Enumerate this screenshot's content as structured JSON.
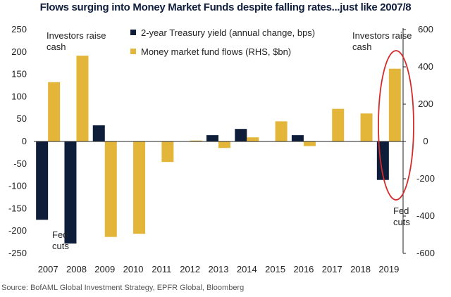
{
  "title": "Flows surging into Money Market Funds despite falling rates...just like 2007/8",
  "source": "Source:  BofAML Global Investment Strategy, EPFR Global, Bloomberg",
  "colors": {
    "treasury": "#0e1e3a",
    "mmf": "#e3b63a",
    "circle": "#d62a2a"
  },
  "chart_data": {
    "type": "bar",
    "categories": [
      "2007",
      "2008",
      "2009",
      "2010",
      "2011",
      "2012",
      "2013",
      "2014",
      "2015",
      "2016",
      "2017",
      "2018",
      "2019"
    ],
    "series": [
      {
        "name": "2-year Treasury yield (annual change, bps)",
        "axis": "left",
        "values": [
          -175,
          -228,
          36,
          0,
          0,
          0,
          14,
          28,
          0,
          14,
          0,
          0,
          -86
        ]
      },
      {
        "name": "Money market fund flows (RHS, $bn)",
        "axis": "right",
        "values": [
          318,
          460,
          -512,
          -495,
          -110,
          5,
          -35,
          22,
          108,
          -25,
          175,
          150,
          390
        ]
      }
    ],
    "ylim_left": [
      -250,
      250
    ],
    "yticks_left": [
      "250",
      "200",
      "150",
      "100",
      "50",
      "0",
      "-50",
      "-100",
      "-150",
      "-200",
      "-250"
    ],
    "ylim_right": [
      -600,
      600
    ],
    "yticks_right": [
      "600",
      "400",
      "200",
      "0",
      "-200",
      "-400",
      "-600"
    ],
    "legend_position": "top-center",
    "annotations": [
      {
        "text": [
          "Investors raise",
          "cash"
        ],
        "near": "2007 top"
      },
      {
        "text": [
          "Fed",
          "cuts"
        ],
        "near": "2007 bottom"
      },
      {
        "text": [
          "Investors raise",
          "cash"
        ],
        "near": "2019 top"
      },
      {
        "text": [
          "Fed",
          "cuts"
        ],
        "near": "2019 bottom"
      }
    ]
  }
}
